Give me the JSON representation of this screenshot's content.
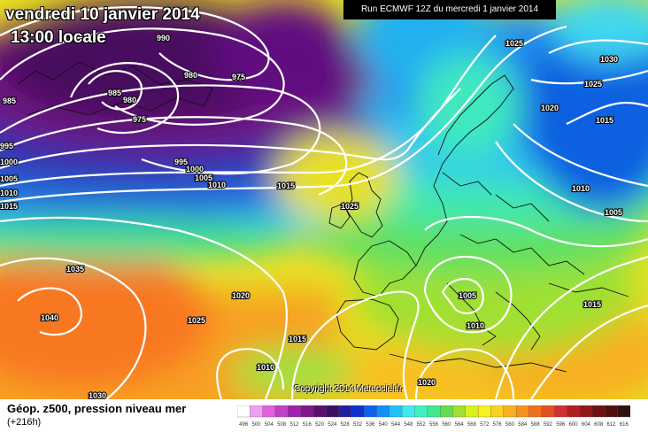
{
  "header": {
    "valid_time": "vendredi 10 janvier 2014",
    "local_time": "13:00 locale",
    "run": "Run ECMWF 12Z du mercredi 1 janvier 2014"
  },
  "copyright": "Copyright 2014 Meteociel.fr",
  "footer": {
    "field": "Géop. z500, pression niveau mer",
    "lead": "(+216h)"
  },
  "legend": {
    "values": [
      "496",
      "500",
      "504",
      "508",
      "512",
      "516",
      "520",
      "524",
      "528",
      "532",
      "536",
      "540",
      "544",
      "548",
      "552",
      "556",
      "560",
      "564",
      "568",
      "572",
      "576",
      "580",
      "584",
      "588",
      "592",
      "596",
      "600",
      "604",
      "608",
      "612",
      "616"
    ],
    "colors": [
      "#ffffff",
      "#f0a0f0",
      "#e060e0",
      "#c040c8",
      "#a020b0",
      "#801890",
      "#5a1070",
      "#3a1060",
      "#2020a0",
      "#1030d0",
      "#1060f0",
      "#1090f8",
      "#20c0f8",
      "#40e8f0",
      "#40f0c0",
      "#40e890",
      "#60e050",
      "#a0e030",
      "#d8f020",
      "#f8f020",
      "#f8d020",
      "#f8b020",
      "#f89020",
      "#f07020",
      "#e05020",
      "#d03030",
      "#b02020",
      "#901818",
      "#701010",
      "#501010",
      "#301010"
    ]
  },
  "isobars": [
    {
      "label": "990"
    },
    {
      "label": "980"
    },
    {
      "label": "975"
    },
    {
      "label": "985"
    },
    {
      "label": "980"
    },
    {
      "label": "975"
    },
    {
      "label": "985"
    },
    {
      "label": "995"
    },
    {
      "label": "1000"
    },
    {
      "label": "1005"
    },
    {
      "label": "1010"
    },
    {
      "label": "1015"
    },
    {
      "label": "995"
    },
    {
      "label": "1000"
    },
    {
      "label": "1005"
    },
    {
      "label": "1010"
    },
    {
      "label": "1015"
    },
    {
      "label": "1025"
    },
    {
      "label": "1025"
    },
    {
      "label": "1030"
    },
    {
      "label": "1025"
    },
    {
      "label": "1020"
    },
    {
      "label": "1015"
    },
    {
      "label": "1010"
    },
    {
      "label": "1005"
    },
    {
      "label": "1035"
    },
    {
      "label": "1040"
    },
    {
      "label": "1020"
    },
    {
      "label": "1025"
    },
    {
      "label": "1015"
    },
    {
      "label": "1005"
    },
    {
      "label": "1010"
    },
    {
      "label": "1015"
    },
    {
      "label": "1010"
    },
    {
      "label": "1020"
    },
    {
      "label": "1030"
    },
    {
      "label": "1015"
    }
  ]
}
